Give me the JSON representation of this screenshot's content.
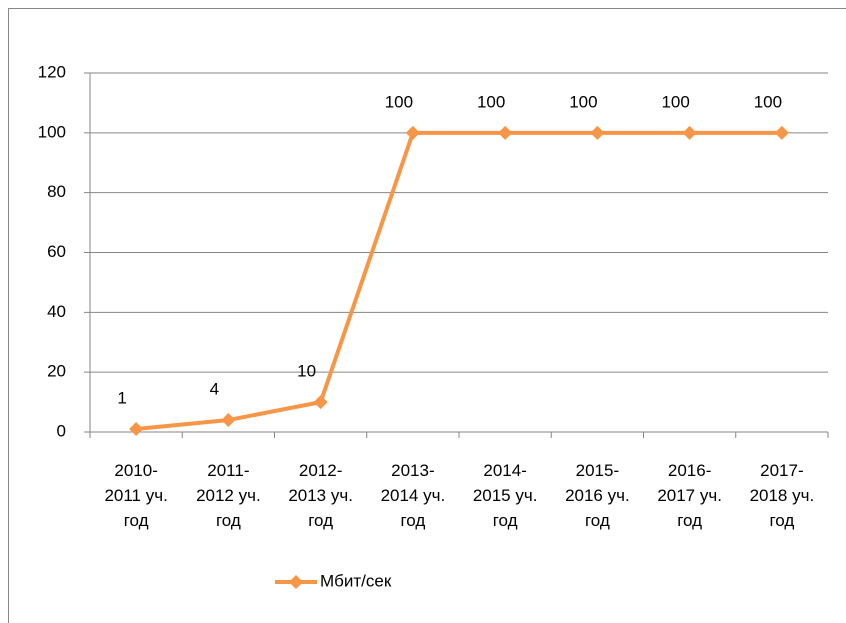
{
  "chart_data": {
    "type": "line",
    "categories": [
      "2010-2011 уч. год",
      "2011-2012 уч. год",
      "2012-2013 уч. год",
      "2013-2014 уч. год",
      "2014-2015 уч. год",
      "2015-2016 уч. год",
      "2016-2017 уч. год",
      "2017-2018 уч. год"
    ],
    "series": [
      {
        "name": "Мбит/сек",
        "color": "#f79646",
        "values": [
          1,
          4,
          10,
          100,
          100,
          100,
          100,
          100
        ]
      }
    ],
    "ylim": [
      0,
      120
    ],
    "yticks": [
      0,
      20,
      40,
      60,
      80,
      100,
      120
    ],
    "grid": true,
    "legend": "bottom"
  }
}
